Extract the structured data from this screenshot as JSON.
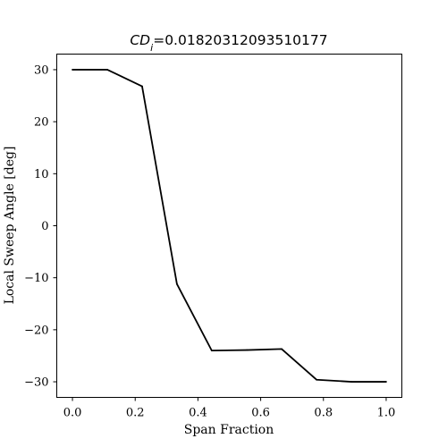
{
  "chart_data": {
    "type": "line",
    "title": {
      "symbol": "CD",
      "subscript": "i",
      "equals": "=",
      "value": "0.01820312093510177"
    },
    "xlabel": "Span Fraction",
    "ylabel": "Local Sweep Angle [deg]",
    "xlim": [
      -0.05,
      1.05
    ],
    "ylim": [
      -33,
      33
    ],
    "xticks": [
      0.0,
      0.2,
      0.4,
      0.6,
      0.8,
      1.0
    ],
    "xtick_labels": [
      "0.0",
      "0.2",
      "0.4",
      "0.6",
      "0.8",
      "1.0"
    ],
    "yticks": [
      30,
      20,
      10,
      0,
      -10,
      -20,
      -30
    ],
    "ytick_labels": [
      "30",
      "20",
      "10",
      "0",
      "−10",
      "−20",
      "−30"
    ],
    "grid": false,
    "series": [
      {
        "color": "#000000",
        "x": [
          0.0,
          0.111,
          0.222,
          0.333,
          0.444,
          0.556,
          0.667,
          0.778,
          0.889,
          1.0
        ],
        "y": [
          30.0,
          30.0,
          26.8,
          -11.2,
          -24.0,
          -23.9,
          -23.7,
          -29.6,
          -30.0,
          -30.0
        ]
      }
    ]
  }
}
